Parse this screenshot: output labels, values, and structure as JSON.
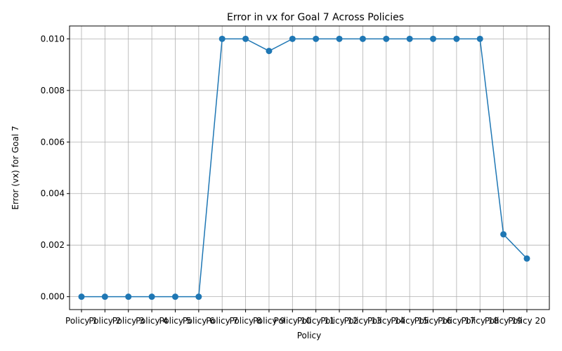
{
  "chart_data": {
    "type": "line",
    "title": "Error in vx for Goal 7 Across Policies",
    "xlabel": "Policy",
    "ylabel": "Error (vx) for Goal 7",
    "categories": [
      "Policy 1",
      "Policy 2",
      "Policy 3",
      "Policy 4",
      "Policy 5",
      "Policy 6",
      "Policy 7",
      "Policy 8",
      "Policy 9",
      "Policy 10",
      "Policy 11",
      "Policy 12",
      "Policy 13",
      "Policy 14",
      "Policy 15",
      "Policy 16",
      "Policy 17",
      "Policy 18",
      "Policy 19",
      "Policy 20"
    ],
    "series": [
      {
        "values": [
          0,
          0,
          0,
          0,
          0,
          0,
          0.01,
          0.01,
          0.00953,
          0.01,
          0.01,
          0.01,
          0.01,
          0.01,
          0.01,
          0.01,
          0.01,
          0.01,
          0.00242,
          0.00148
        ],
        "color": "#1f77b4",
        "marker": "circle"
      }
    ],
    "yticks": [
      "0.000",
      "0.002",
      "0.004",
      "0.006",
      "0.008",
      "0.010"
    ],
    "ylim": [
      -0.0005,
      0.0105
    ],
    "grid": true
  }
}
